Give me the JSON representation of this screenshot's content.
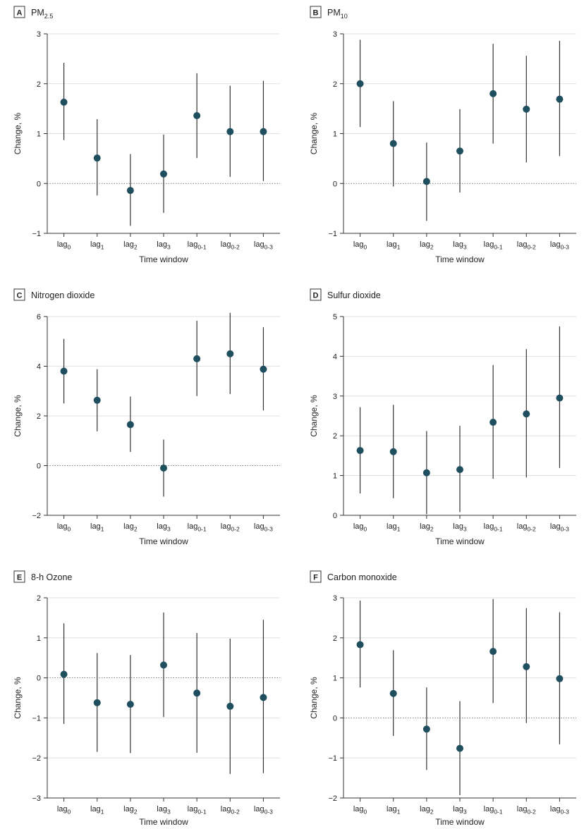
{
  "chart_data": [
    {
      "type": "scatter",
      "panel": "A",
      "title": "PM",
      "title_sub": "2.5",
      "xlabel": "Time window",
      "ylabel": "Change, %",
      "ylim": [
        -1,
        3
      ],
      "yticks": [
        -1,
        0,
        1,
        2,
        3
      ],
      "categories": [
        {
          "base": "lag",
          "sub": "0"
        },
        {
          "base": "lag",
          "sub": "1"
        },
        {
          "base": "lag",
          "sub": "2"
        },
        {
          "base": "lag",
          "sub": "3"
        },
        {
          "base": "lag",
          "sub": "0-1"
        },
        {
          "base": "lag",
          "sub": "0-2"
        },
        {
          "base": "lag",
          "sub": "0-3"
        }
      ],
      "values": [
        1.63,
        0.51,
        -0.14,
        0.19,
        1.36,
        1.04,
        1.04
      ],
      "lower": [
        0.87,
        -0.24,
        -0.85,
        -0.59,
        0.51,
        0.13,
        0.05
      ],
      "upper": [
        2.42,
        1.29,
        0.59,
        0.98,
        2.21,
        1.96,
        2.06
      ],
      "grid": true
    },
    {
      "type": "scatter",
      "panel": "B",
      "title": "PM",
      "title_sub": "10",
      "xlabel": "Time window",
      "ylabel": "Change, %",
      "ylim": [
        -1,
        3
      ],
      "yticks": [
        -1,
        0,
        1,
        2,
        3
      ],
      "categories": [
        {
          "base": "lag",
          "sub": "0"
        },
        {
          "base": "lag",
          "sub": "1"
        },
        {
          "base": "lag",
          "sub": "2"
        },
        {
          "base": "lag",
          "sub": "3"
        },
        {
          "base": "lag",
          "sub": "0-1"
        },
        {
          "base": "lag",
          "sub": "0-2"
        },
        {
          "base": "lag",
          "sub": "0-3"
        }
      ],
      "values": [
        2.0,
        0.8,
        0.04,
        0.65,
        1.8,
        1.49,
        1.69
      ],
      "lower": [
        1.13,
        -0.06,
        -0.75,
        -0.18,
        0.8,
        0.42,
        0.55
      ],
      "upper": [
        2.88,
        1.65,
        0.82,
        1.49,
        2.8,
        2.56,
        2.86
      ],
      "grid": true
    },
    {
      "type": "scatter",
      "panel": "C",
      "title": "Nitrogen dioxide",
      "title_sub": "",
      "xlabel": "Time window",
      "ylabel": "Change, %",
      "ylim": [
        -2,
        6
      ],
      "yticks": [
        -2,
        0,
        2,
        4,
        6
      ],
      "categories": [
        {
          "base": "lag",
          "sub": "0"
        },
        {
          "base": "lag",
          "sub": "1"
        },
        {
          "base": "lag",
          "sub": "2"
        },
        {
          "base": "lag",
          "sub": "3"
        },
        {
          "base": "lag",
          "sub": "0-1"
        },
        {
          "base": "lag",
          "sub": "0-2"
        },
        {
          "base": "lag",
          "sub": "0-3"
        }
      ],
      "values": [
        3.8,
        2.63,
        1.65,
        -0.1,
        4.3,
        4.5,
        3.88
      ],
      "lower": [
        2.5,
        1.38,
        0.55,
        -1.25,
        2.8,
        2.88,
        2.22
      ],
      "upper": [
        5.1,
        3.88,
        2.78,
        1.05,
        5.83,
        6.15,
        5.57
      ],
      "grid": true
    },
    {
      "type": "scatter",
      "panel": "D",
      "title": "Sulfur dioxide",
      "title_sub": "",
      "xlabel": "Time window",
      "ylabel": "Change, %",
      "ylim": [
        0,
        5
      ],
      "yticks": [
        0,
        1,
        2,
        3,
        4,
        5
      ],
      "categories": [
        {
          "base": "lag",
          "sub": "0"
        },
        {
          "base": "lag",
          "sub": "1"
        },
        {
          "base": "lag",
          "sub": "2"
        },
        {
          "base": "lag",
          "sub": "3"
        },
        {
          "base": "lag",
          "sub": "0-1"
        },
        {
          "base": "lag",
          "sub": "0-2"
        },
        {
          "base": "lag",
          "sub": "0-3"
        }
      ],
      "values": [
        1.63,
        1.6,
        1.07,
        1.15,
        2.34,
        2.55,
        2.95
      ],
      "lower": [
        0.55,
        0.43,
        0.03,
        0.08,
        0.92,
        0.95,
        1.19
      ],
      "upper": [
        2.72,
        2.78,
        2.12,
        2.25,
        3.78,
        4.18,
        4.75
      ],
      "grid": true
    },
    {
      "type": "scatter",
      "panel": "E",
      "title": "8-h Ozone",
      "title_sub": "",
      "xlabel": "Time window",
      "ylabel": "Change, %",
      "ylim": [
        -3,
        2
      ],
      "yticks": [
        -3,
        -2,
        -1,
        0,
        1,
        2
      ],
      "categories": [
        {
          "base": "lag",
          "sub": "0"
        },
        {
          "base": "lag",
          "sub": "1"
        },
        {
          "base": "lag",
          "sub": "2"
        },
        {
          "base": "lag",
          "sub": "3"
        },
        {
          "base": "lag",
          "sub": "0-1"
        },
        {
          "base": "lag",
          "sub": "0-2"
        },
        {
          "base": "lag",
          "sub": "0-3"
        }
      ],
      "values": [
        0.09,
        -0.62,
        -0.66,
        0.32,
        -0.38,
        -0.71,
        -0.49
      ],
      "lower": [
        -1.15,
        -1.85,
        -1.88,
        -0.98,
        -1.87,
        -2.4,
        -2.38
      ],
      "upper": [
        1.36,
        0.62,
        0.57,
        1.63,
        1.12,
        0.98,
        1.45
      ],
      "grid": true
    },
    {
      "type": "scatter",
      "panel": "F",
      "title": "Carbon monoxide",
      "title_sub": "",
      "xlabel": "Time window",
      "ylabel": "Change, %",
      "ylim": [
        -2,
        3
      ],
      "yticks": [
        -2,
        -1,
        0,
        1,
        2,
        3
      ],
      "categories": [
        {
          "base": "lag",
          "sub": "0"
        },
        {
          "base": "lag",
          "sub": "1"
        },
        {
          "base": "lag",
          "sub": "2"
        },
        {
          "base": "lag",
          "sub": "3"
        },
        {
          "base": "lag",
          "sub": "0-1"
        },
        {
          "base": "lag",
          "sub": "0-2"
        },
        {
          "base": "lag",
          "sub": "0-3"
        }
      ],
      "values": [
        1.83,
        0.61,
        -0.28,
        -0.76,
        1.66,
        1.28,
        0.98
      ],
      "lower": [
        0.76,
        -0.45,
        -1.3,
        -1.93,
        0.37,
        -0.13,
        -0.66
      ],
      "upper": [
        2.93,
        1.69,
        0.76,
        0.42,
        2.97,
        2.74,
        2.64
      ],
      "grid": true
    }
  ],
  "colors": {
    "point": "#1f4e5f",
    "ci_line": "#333333",
    "grid": "#d9d9d9",
    "zero_line": "#555555"
  }
}
